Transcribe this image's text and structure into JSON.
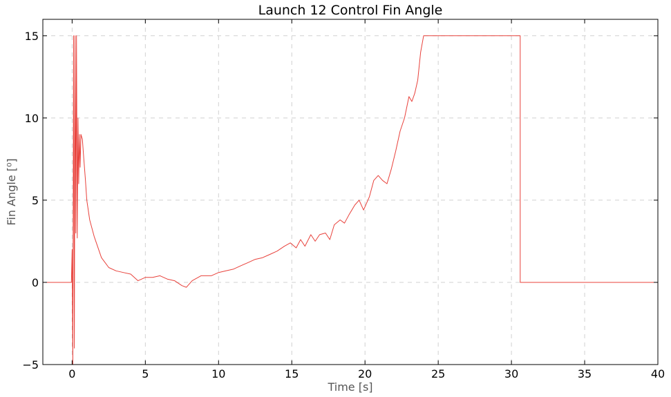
{
  "chart_data": {
    "type": "line",
    "title": "Launch 12 Control Fin Angle",
    "xlabel": "Time [s]",
    "ylabel": "Fin Angle [⁰]",
    "xlim": [
      -2,
      40
    ],
    "ylim": [
      -5,
      16
    ],
    "xticks": [
      0,
      5,
      10,
      15,
      20,
      25,
      30,
      35,
      40
    ],
    "yticks": [
      -5,
      0,
      5,
      10,
      15
    ],
    "grid": true,
    "legend": "none",
    "series": [
      {
        "color": "#e8403a",
        "x": [
          -2,
          -0.05,
          0.0,
          0.05,
          0.1,
          0.15,
          0.2,
          0.25,
          0.3,
          0.35,
          0.4,
          0.45,
          0.5,
          0.55,
          0.6,
          0.7,
          0.8,
          0.9,
          1.0,
          1.2,
          1.5,
          2.0,
          2.5,
          3.0,
          3.5,
          4.0,
          4.5,
          5.0,
          5.5,
          6.0,
          6.5,
          7.0,
          7.5,
          7.8,
          8.2,
          8.8,
          9.5,
          10.0,
          10.5,
          11.0,
          11.5,
          12.0,
          12.5,
          13.0,
          13.5,
          14.0,
          14.5,
          14.9,
          15.3,
          15.6,
          15.9,
          16.3,
          16.6,
          16.9,
          17.3,
          17.6,
          17.9,
          18.3,
          18.6,
          18.9,
          19.3,
          19.6,
          19.9,
          20.3,
          20.6,
          20.9,
          21.2,
          21.5,
          21.8,
          22.1,
          22.4,
          22.7,
          23.0,
          23.2,
          23.4,
          23.6,
          23.8,
          24.0,
          30.6,
          30.6,
          40
        ],
        "y": [
          0,
          0,
          2,
          -5,
          15,
          -4,
          15,
          3,
          15,
          2.7,
          10,
          6,
          9,
          7,
          9,
          8.7,
          7.5,
          6.3,
          5.0,
          3.8,
          2.8,
          1.5,
          0.9,
          0.7,
          0.6,
          0.5,
          0.1,
          0.3,
          0.3,
          0.4,
          0.2,
          0.1,
          -0.2,
          -0.3,
          0.1,
          0.4,
          0.4,
          0.6,
          0.7,
          0.8,
          1.0,
          1.2,
          1.4,
          1.5,
          1.7,
          1.9,
          2.2,
          2.4,
          2.1,
          2.6,
          2.2,
          2.9,
          2.5,
          2.9,
          3.0,
          2.6,
          3.5,
          3.8,
          3.6,
          4.1,
          4.7,
          5.0,
          4.4,
          5.2,
          6.2,
          6.5,
          6.2,
          6.0,
          6.9,
          8.0,
          9.2,
          10.0,
          11.3,
          11.0,
          11.5,
          12.3,
          14.0,
          15.0,
          15.0,
          0,
          0
        ]
      }
    ]
  }
}
